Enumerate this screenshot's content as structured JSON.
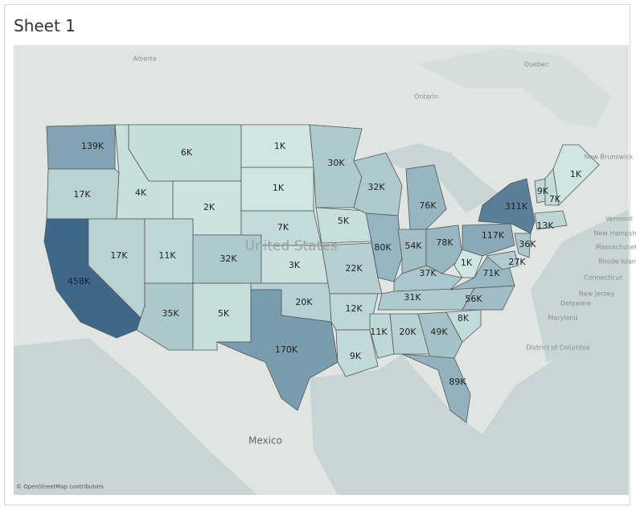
{
  "title": "Sheet 1",
  "attribution": "© OpenStreetMap contributors",
  "places": [
    {
      "label": "Alberta"
    },
    {
      "label": "Ontario"
    },
    {
      "label": "Quebec"
    },
    {
      "label": "New Brunswick"
    },
    {
      "label": "United States"
    },
    {
      "label": "Mexico"
    },
    {
      "label": "Vermont"
    },
    {
      "label": "New Hampshire"
    },
    {
      "label": "Massachusetts"
    },
    {
      "label": "Rhode Island"
    },
    {
      "label": "Connecticut"
    },
    {
      "label": "New Jersey"
    },
    {
      "label": "Delaware"
    },
    {
      "label": "Maryland"
    },
    {
      "label": "District of Columbia"
    }
  ],
  "states": [
    {
      "value": 139000,
      "label": "139K"
    },
    {
      "value": 17000,
      "label": "17K"
    },
    {
      "value": 458000,
      "label": "458K"
    },
    {
      "value": 4000,
      "label": "4K"
    },
    {
      "value": 6000,
      "label": "6K"
    },
    {
      "value": 2000,
      "label": "2K"
    },
    {
      "value": 17000,
      "label": "17K"
    },
    {
      "value": 11000,
      "label": "11K"
    },
    {
      "value": 32000,
      "label": "32K"
    },
    {
      "value": 35000,
      "label": "35K"
    },
    {
      "value": 5000,
      "label": "5K"
    },
    {
      "value": 1000,
      "label": "1K"
    },
    {
      "value": 1000,
      "label": "1K"
    },
    {
      "value": 7000,
      "label": "7K"
    },
    {
      "value": 3000,
      "label": "3K"
    },
    {
      "value": 20000,
      "label": "20K"
    },
    {
      "value": 170000,
      "label": "170K"
    },
    {
      "value": 30000,
      "label": "30K"
    },
    {
      "value": 5000,
      "label": "5K"
    },
    {
      "value": 22000,
      "label": "22K"
    },
    {
      "value": 12000,
      "label": "12K"
    },
    {
      "value": 9000,
      "label": "9K"
    },
    {
      "value": 32000,
      "label": "32K"
    },
    {
      "value": 80000,
      "label": "80K"
    },
    {
      "value": 76000,
      "label": "76K"
    },
    {
      "value": 54000,
      "label": "54K"
    },
    {
      "value": 78000,
      "label": "78K"
    },
    {
      "value": 37000,
      "label": "37K"
    },
    {
      "value": 31000,
      "label": "31K"
    },
    {
      "value": 11000,
      "label": "11K"
    },
    {
      "value": 20000,
      "label": "20K"
    },
    {
      "value": 49000,
      "label": "49K"
    },
    {
      "value": 89000,
      "label": "89K"
    },
    {
      "value": 8000,
      "label": "8K"
    },
    {
      "value": 56000,
      "label": "56K"
    },
    {
      "value": 71000,
      "label": "71K"
    },
    {
      "value": 1000,
      "label": "1K"
    },
    {
      "value": 117000,
      "label": "117K"
    },
    {
      "value": 311000,
      "label": "311K"
    },
    {
      "value": 9000,
      "label": "9K"
    },
    {
      "value": 7000,
      "label": "7K"
    },
    {
      "value": 1000,
      "label": "1K"
    },
    {
      "value": 13000,
      "label": "13K"
    },
    {
      "value": 36000,
      "label": "36K"
    },
    {
      "value": 27000,
      "label": "27K"
    }
  ]
}
